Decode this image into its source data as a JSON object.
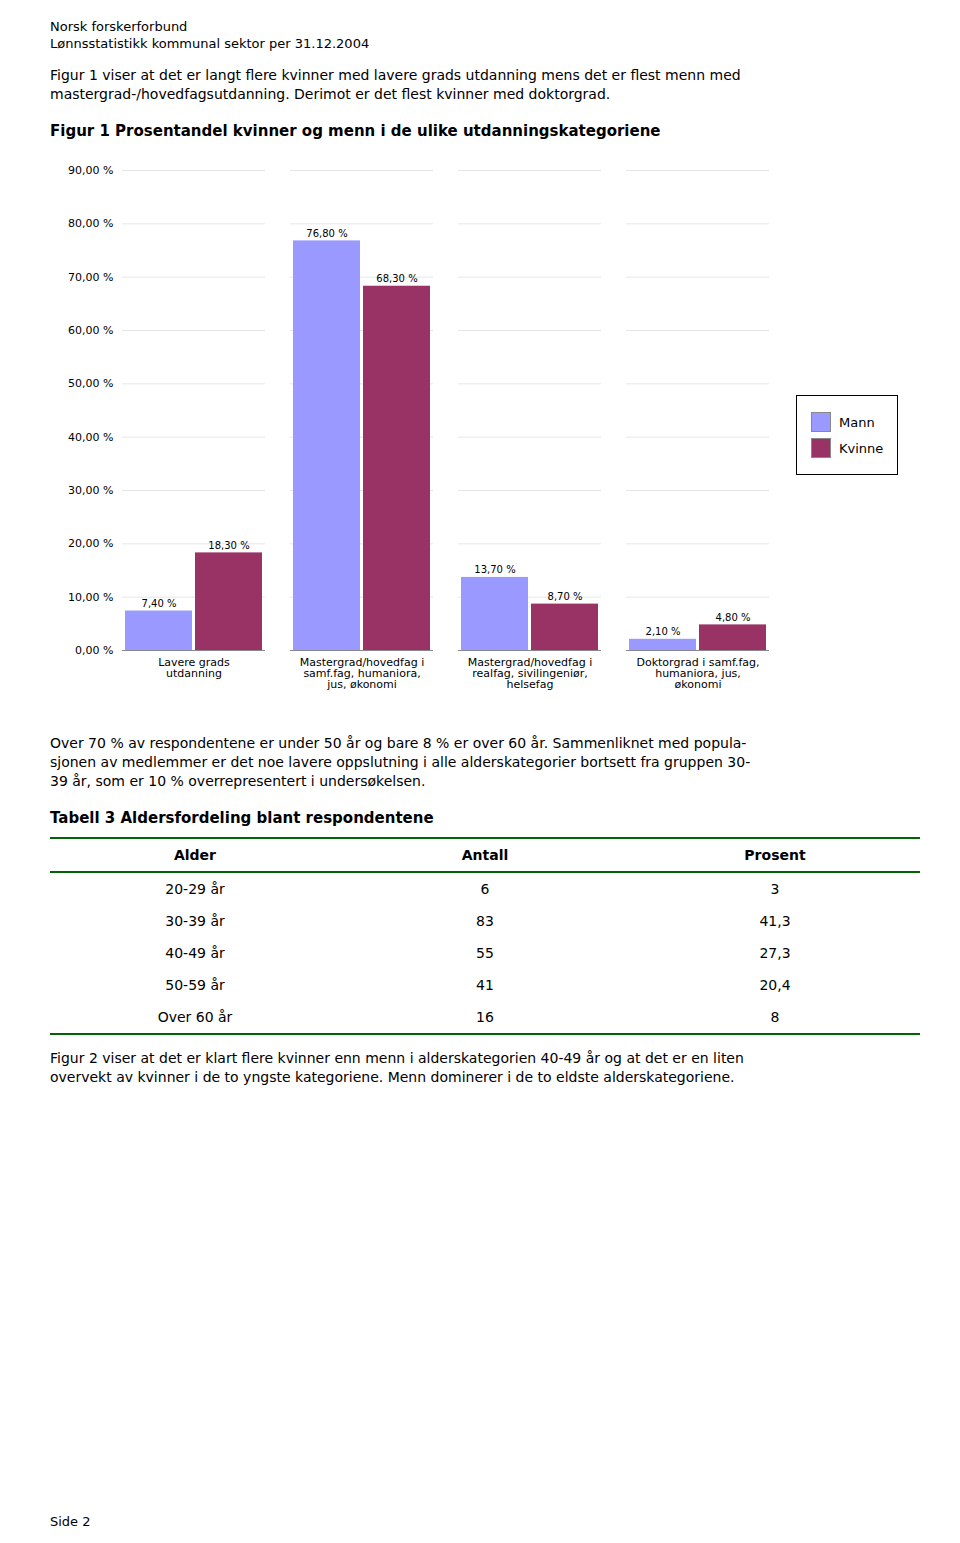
{
  "page_title": [
    "Norsk forskerforbund",
    "Lønnsstatistikk kommunal sektor per 31.12.2004"
  ],
  "intro_text": [
    "Figur 1 viser at det er langt flere kvinner med lavere grads utdanning mens det er flest menn med",
    "mastergrad-/hovedfagsutdanning. Derimot er det flest kvinner med doktorgrad."
  ],
  "chart_data": {
    "type": "bar",
    "title": "Figur 1 Prosentandel kvinner og menn i de ulike utdanningskategoriene",
    "categories": [
      "Lavere grads\nutdanning",
      "Mastergrad/hovedfag i\nsamf.fag, humaniora,\njus, økonomi",
      "Mastergrad/hovedfag i\nrealfag, sivilingeniør,\nhelsefag",
      "Doktorgrad i samf.fag,\nhumaniora, jus,\nøkonomi"
    ],
    "series": [
      {
        "name": "Mann",
        "color": "#9999ff",
        "values": [
          7.4,
          76.8,
          13.7,
          2.1
        ],
        "value_labels": [
          "7,40 %",
          "76,80 %",
          "13,70 %",
          "2,10 %"
        ]
      },
      {
        "name": "Kvinne",
        "color": "#993366",
        "values": [
          18.3,
          68.3,
          8.7,
          4.8
        ],
        "value_labels": [
          "18,30 %",
          "68,30 %",
          "8,70 %",
          "4,80 %"
        ]
      }
    ],
    "ylim": [
      0,
      90
    ],
    "yticks": [
      {
        "value": 0,
        "label": "0,00 %"
      },
      {
        "value": 10,
        "label": "10,00 %"
      },
      {
        "value": 20,
        "label": "20,00 %"
      },
      {
        "value": 30,
        "label": "30,00 %"
      },
      {
        "value": 40,
        "label": "40,00 %"
      },
      {
        "value": 50,
        "label": "50,00 %"
      },
      {
        "value": 60,
        "label": "60,00 %"
      },
      {
        "value": 70,
        "label": "70,00 %"
      },
      {
        "value": 80,
        "label": "80,00 %"
      },
      {
        "value": 90,
        "label": "90,00 %"
      }
    ],
    "grid": true,
    "legend": "right",
    "data_labels": true
  },
  "body_text_1": [
    "Over 70 % av respondentene er under 50 år og bare 8 % er over 60 år. Sammenliknet med popula-",
    "sjonen av medlemmer er det noe lavere oppslutning i alle alderskategorier bortsett fra gruppen 30-",
    "39 år, som er 10 % overrepresentert i undersøkelsen."
  ],
  "table": {
    "title": "Tabell 3 Aldersfordeling blant respondentene",
    "headers": [
      "Alder",
      "Antall",
      "Prosent"
    ],
    "rows": [
      [
        "20-29 år",
        "6",
        "3"
      ],
      [
        "30-39 år",
        "83",
        "41,3"
      ],
      [
        "40-49 år",
        "55",
        "27,3"
      ],
      [
        "50-59 år",
        "41",
        "20,4"
      ],
      [
        "Over 60 år",
        "16",
        "8"
      ]
    ]
  },
  "body_text_2": [
    "Figur 2 viser at det er klart flere kvinner enn menn i alderskategorien 40-49 år og at det er en liten",
    "overvekt av kvinner i de to yngste kategoriene. Menn dominerer i de to eldste alderskategoriene."
  ],
  "footer": "Side 2"
}
